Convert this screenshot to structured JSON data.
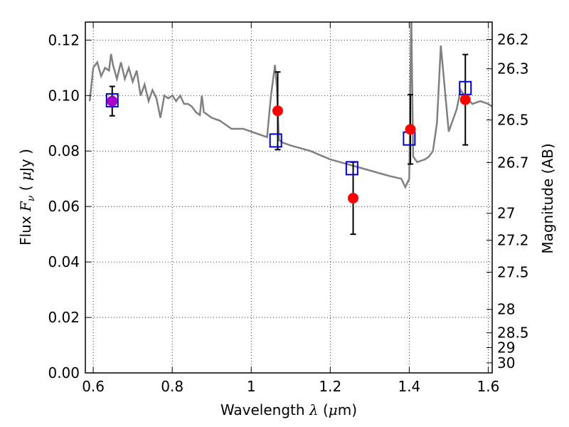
{
  "chart_data": {
    "type": "scatter",
    "title": "",
    "xlabel": {
      "prefix": "Wavelength",
      "symbol": "λ",
      "unit_open": "(",
      "unit_mu": "μ",
      "unit_rest": "m)"
    },
    "ylabel": {
      "prefix": "Flux",
      "symbol": "F",
      "subscript": "ν",
      "unit_open": "(",
      "unit_mu": "μ",
      "unit_rest": "Jy )"
    },
    "y2label": "Magnitude (AB)",
    "xlim": [
      0.58,
      1.61
    ],
    "ylim": [
      0.0,
      0.1265
    ],
    "grid": true,
    "grid_style": "dotted",
    "x_ticks": [
      {
        "value": 0.6,
        "label": "0.6"
      },
      {
        "value": 0.8,
        "label": "0.8"
      },
      {
        "value": 1.0,
        "label": "1"
      },
      {
        "value": 1.2,
        "label": "1.2"
      },
      {
        "value": 1.4,
        "label": "1.4"
      },
      {
        "value": 1.6,
        "label": "1.6"
      }
    ],
    "y_ticks": [
      {
        "value": 0.0,
        "label": "0.00"
      },
      {
        "value": 0.02,
        "label": "0.02"
      },
      {
        "value": 0.04,
        "label": "0.04"
      },
      {
        "value": 0.06,
        "label": "0.06"
      },
      {
        "value": 0.08,
        "label": "0.08"
      },
      {
        "value": 0.1,
        "label": "0.10"
      },
      {
        "value": 0.12,
        "label": "0.12"
      }
    ],
    "y2_ticks": [
      {
        "mag": 26.2,
        "label": "26.2"
      },
      {
        "mag": 26.3,
        "label": "26.3"
      },
      {
        "mag": 26.5,
        "label": "26.5"
      },
      {
        "mag": 26.7,
        "label": "26.7"
      },
      {
        "mag": 27.0,
        "label": "27"
      },
      {
        "mag": 27.2,
        "label": "27.2"
      },
      {
        "mag": 27.5,
        "label": "27.5"
      },
      {
        "mag": 28.0,
        "label": "28"
      },
      {
        "mag": 28.5,
        "label": "28.5"
      },
      {
        "mag": 29.0,
        "label": "29"
      },
      {
        "mag": 30.0,
        "label": "30"
      }
    ],
    "colors": {
      "sed": "#808080",
      "observed": "#ff0000",
      "model": "#0000cc",
      "overlap": "#aa00cc",
      "errorbar": "#000000"
    },
    "sed_curve": {
      "x": [
        0.591,
        0.6,
        0.61,
        0.62,
        0.63,
        0.64,
        0.645,
        0.65,
        0.66,
        0.67,
        0.68,
        0.69,
        0.7,
        0.71,
        0.72,
        0.73,
        0.74,
        0.75,
        0.76,
        0.77,
        0.78,
        0.79,
        0.8,
        0.81,
        0.82,
        0.83,
        0.84,
        0.85,
        0.86,
        0.87,
        0.875,
        0.88,
        0.9,
        0.92,
        0.94,
        0.95,
        0.96,
        0.98,
        1.0,
        1.02,
        1.04,
        1.05,
        1.06,
        1.065,
        1.07,
        1.08,
        1.1,
        1.15,
        1.2,
        1.25,
        1.3,
        1.35,
        1.38,
        1.39,
        1.4,
        1.405,
        1.41,
        1.42,
        1.44,
        1.45,
        1.46,
        1.47,
        1.48,
        1.5,
        1.52,
        1.53,
        1.54,
        1.56,
        1.58,
        1.6,
        1.61
      ],
      "y": [
        0.098,
        0.11,
        0.112,
        0.107,
        0.11,
        0.109,
        0.115,
        0.111,
        0.106,
        0.112,
        0.106,
        0.11,
        0.105,
        0.109,
        0.1,
        0.104,
        0.098,
        0.102,
        0.099,
        0.092,
        0.1,
        0.099,
        0.1,
        0.098,
        0.1,
        0.097,
        0.097,
        0.096,
        0.094,
        0.093,
        0.1,
        0.094,
        0.092,
        0.091,
        0.089,
        0.088,
        0.088,
        0.088,
        0.087,
        0.086,
        0.085,
        0.1,
        0.111,
        0.103,
        0.084,
        0.083,
        0.082,
        0.08,
        0.077,
        0.075,
        0.073,
        0.071,
        0.07,
        0.067,
        0.07,
        0.13,
        0.078,
        0.076,
        0.077,
        0.078,
        0.08,
        0.09,
        0.118,
        0.087,
        0.095,
        0.102,
        0.1,
        0.097,
        0.098,
        0.097,
        0.096
      ]
    },
    "observed_points": [
      {
        "x": 0.648,
        "y": 0.098,
        "err": 0.0053
      },
      {
        "x": 1.067,
        "y": 0.0945,
        "err": 0.014
      },
      {
        "x": 1.258,
        "y": 0.063,
        "err": 0.013
      },
      {
        "x": 1.403,
        "y": 0.0878,
        "err": 0.0125
      },
      {
        "x": 1.542,
        "y": 0.0985,
        "err": 0.0163
      }
    ],
    "model_points": [
      {
        "x": 0.648,
        "y": 0.0983
      },
      {
        "x": 1.062,
        "y": 0.0838
      },
      {
        "x": 1.255,
        "y": 0.0738
      },
      {
        "x": 1.4,
        "y": 0.0845
      },
      {
        "x": 1.542,
        "y": 0.1027
      }
    ]
  }
}
